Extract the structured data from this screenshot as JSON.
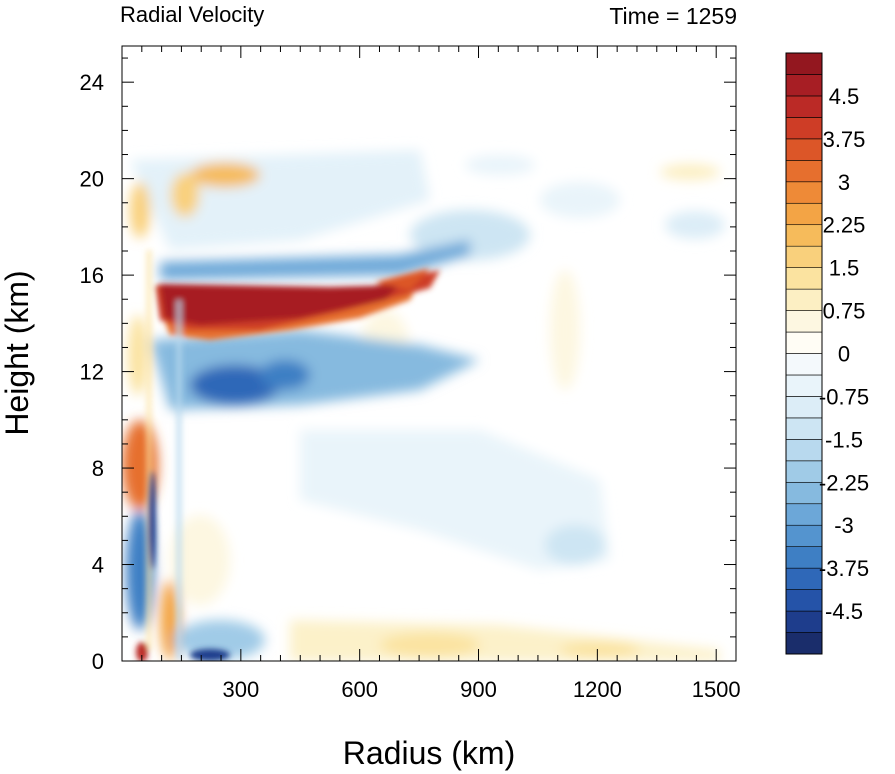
{
  "chart_data": {
    "type": "heatmap",
    "title": "Radial Velocity",
    "subtitle": "Time = 1259",
    "xlabel": "Radius (km)",
    "ylabel": "Height (km)",
    "xlim": [
      0,
      1550
    ],
    "ylim": [
      0,
      25.5
    ],
    "x_ticks": [
      300,
      600,
      900,
      1200,
      1500
    ],
    "x_tick_labels": [
      "300",
      "600",
      "900",
      "1200",
      "1500"
    ],
    "y_ticks": [
      0,
      4,
      8,
      12,
      16,
      20,
      24
    ],
    "y_tick_labels": [
      "0",
      "4",
      "8",
      "12",
      "16",
      "20",
      "24"
    ],
    "colorbar": {
      "min": -5.25,
      "max": 5.25,
      "step": 0.375,
      "tick_values": [
        4.5,
        3.75,
        3,
        2.25,
        1.5,
        0.75,
        0,
        -0.75,
        -1.5,
        -2.25,
        -3,
        -3.75,
        -4.5
      ],
      "tick_labels": [
        "4.5",
        "3.75",
        "3",
        "2.25",
        "1.5",
        "0.75",
        "0",
        "-0.75",
        "-1.5",
        "-2.25",
        "-3",
        "-3.75",
        "-4.5"
      ],
      "colors": [
        "#1a2d6b",
        "#1e3d8c",
        "#2553a8",
        "#2f68b8",
        "#3e7fc4",
        "#5494cf",
        "#6ca7d8",
        "#86badf",
        "#a0cbe7",
        "#b8d9ee",
        "#cde5f3",
        "#dcedf7",
        "#e9f4fa",
        "#f4f9fc",
        "#fffdf5",
        "#fdf7e1",
        "#fcefc3",
        "#fbe3a0",
        "#f9d07c",
        "#f6bb5b",
        "#f3a445",
        "#ee8a37",
        "#e66f2e",
        "#dc5628",
        "#ce3d26",
        "#bb2a26",
        "#a71e24",
        "#93171f"
      ]
    },
    "features": [
      {
        "label": "outflow maximum",
        "x_range": [
          130,
          700
        ],
        "y_range": [
          13.5,
          16
        ],
        "value": 5.25
      },
      {
        "label": "upper inflow",
        "x_range": [
          150,
          480
        ],
        "y_range": [
          10,
          13
        ],
        "value": -4.0
      },
      {
        "label": "lower-level outflow",
        "x_range": [
          20,
          80
        ],
        "y_range": [
          6,
          9.5
        ],
        "value": 3.5
      },
      {
        "label": "near-surface inflow",
        "x_range": [
          20,
          300
        ],
        "y_range": [
          0,
          6
        ],
        "value": -4.5
      }
    ]
  }
}
